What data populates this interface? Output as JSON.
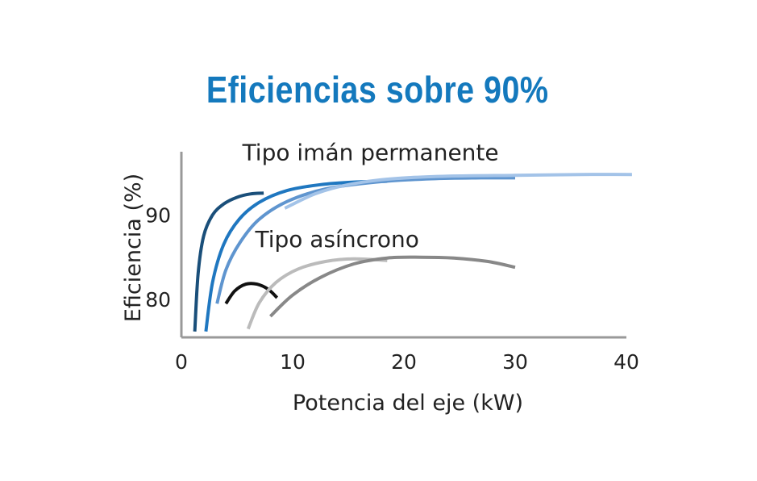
{
  "chart_data": {
    "type": "line",
    "title": "Eficiencias sobre 90%",
    "xlabel": "Potencia del eje (kW)",
    "ylabel": "Eficiencia (%)",
    "xlim": [
      0,
      40
    ],
    "ylim": [
      75.5,
      97.5
    ],
    "xticks": [
      "0",
      "10",
      "20",
      "30",
      "40"
    ],
    "xtick_values": [
      0,
      10,
      20,
      30,
      40
    ],
    "yticks": [
      "80",
      "90"
    ],
    "ytick_values": [
      80,
      90
    ],
    "grid": false,
    "annotations": [
      {
        "text": "Tipo imán permanente",
        "x": 17,
        "y": 96.5
      },
      {
        "text": "Tipo asíncrono",
        "x": 14,
        "y": 86.2
      }
    ],
    "series": [
      {
        "color": "#1a4f7a",
        "x": [
          1.2,
          1.5,
          2.0,
          2.8,
          3.8,
          5.0,
          6.2,
          7.4
        ],
        "y": [
          76.2,
          83.0,
          87.5,
          90.0,
          91.3,
          92.1,
          92.5,
          92.6
        ]
      },
      {
        "color": "#1f77c0",
        "x": [
          2.2,
          2.8,
          3.8,
          5.2,
          7.0,
          9.5,
          12.5,
          15.5,
          18.5
        ],
        "y": [
          76.2,
          82.0,
          86.5,
          89.5,
          91.5,
          92.9,
          93.6,
          93.9,
          94.0
        ]
      },
      {
        "color": "#5f95cf",
        "x": [
          3.2,
          4.0,
          5.3,
          7.0,
          9.5,
          13.0,
          17.5,
          22.5,
          27.0,
          30.0
        ],
        "y": [
          79.5,
          83.5,
          86.8,
          89.5,
          91.6,
          93.1,
          93.9,
          94.3,
          94.4,
          94.4
        ]
      },
      {
        "color": "#a3c3e8",
        "x": [
          9.3,
          12.0,
          15.0,
          19.0,
          24.0,
          30.0,
          36.0,
          40.5
        ],
        "y": [
          90.8,
          92.5,
          93.6,
          94.3,
          94.6,
          94.7,
          94.8,
          94.8
        ]
      },
      {
        "color": "#111111",
        "x": [
          4.0,
          4.8,
          5.8,
          6.8,
          7.8,
          8.6
        ],
        "y": [
          79.5,
          81.0,
          81.8,
          81.8,
          81.2,
          80.2
        ]
      },
      {
        "color": "#bbbbbb",
        "x": [
          6.0,
          7.0,
          8.5,
          10.5,
          13.0,
          15.5,
          18.5
        ],
        "y": [
          76.5,
          79.6,
          82.0,
          83.6,
          84.5,
          84.8,
          84.6
        ]
      },
      {
        "color": "#888888",
        "x": [
          8.0,
          10.0,
          12.5,
          15.5,
          18.5,
          21.5,
          24.5,
          27.5,
          30.0
        ],
        "y": [
          78.0,
          80.5,
          82.6,
          84.2,
          84.9,
          85.0,
          84.9,
          84.5,
          83.8
        ]
      }
    ]
  }
}
